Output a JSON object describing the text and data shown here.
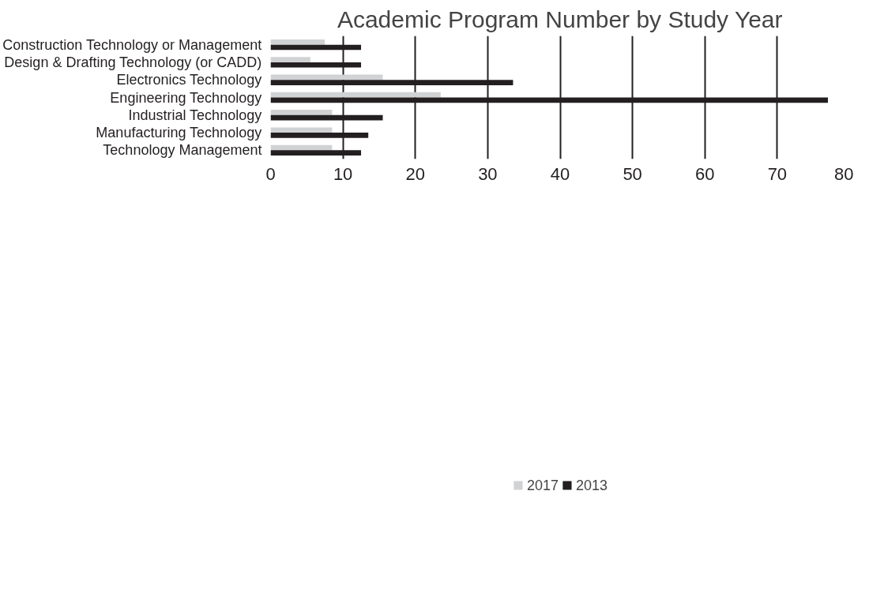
{
  "chart_data": {
    "type": "bar",
    "orientation": "horizontal",
    "title": "Academic Program Number by Study Year",
    "categories": [
      "Construction Technology or Management",
      "Design & Drafting Technology (or CADD)",
      "Electronics Technology",
      "Engineering Technology",
      "Industrial Technology",
      "Manufacturing Technology",
      "Technology Management"
    ],
    "series": [
      {
        "name": "2017",
        "color": "#d1d2d4",
        "values": [
          7.5,
          5.5,
          15.5,
          23.5,
          8.5,
          8.5,
          8.5
        ]
      },
      {
        "name": "2013",
        "color": "#231f20",
        "values": [
          12.5,
          12.5,
          33.5,
          77,
          15.5,
          13.5,
          12.5
        ]
      }
    ],
    "xlim": [
      0,
      80
    ],
    "xticks": [
      0,
      10,
      20,
      30,
      40,
      50,
      60,
      70,
      80
    ],
    "grid": "x",
    "legend": "bottom"
  }
}
